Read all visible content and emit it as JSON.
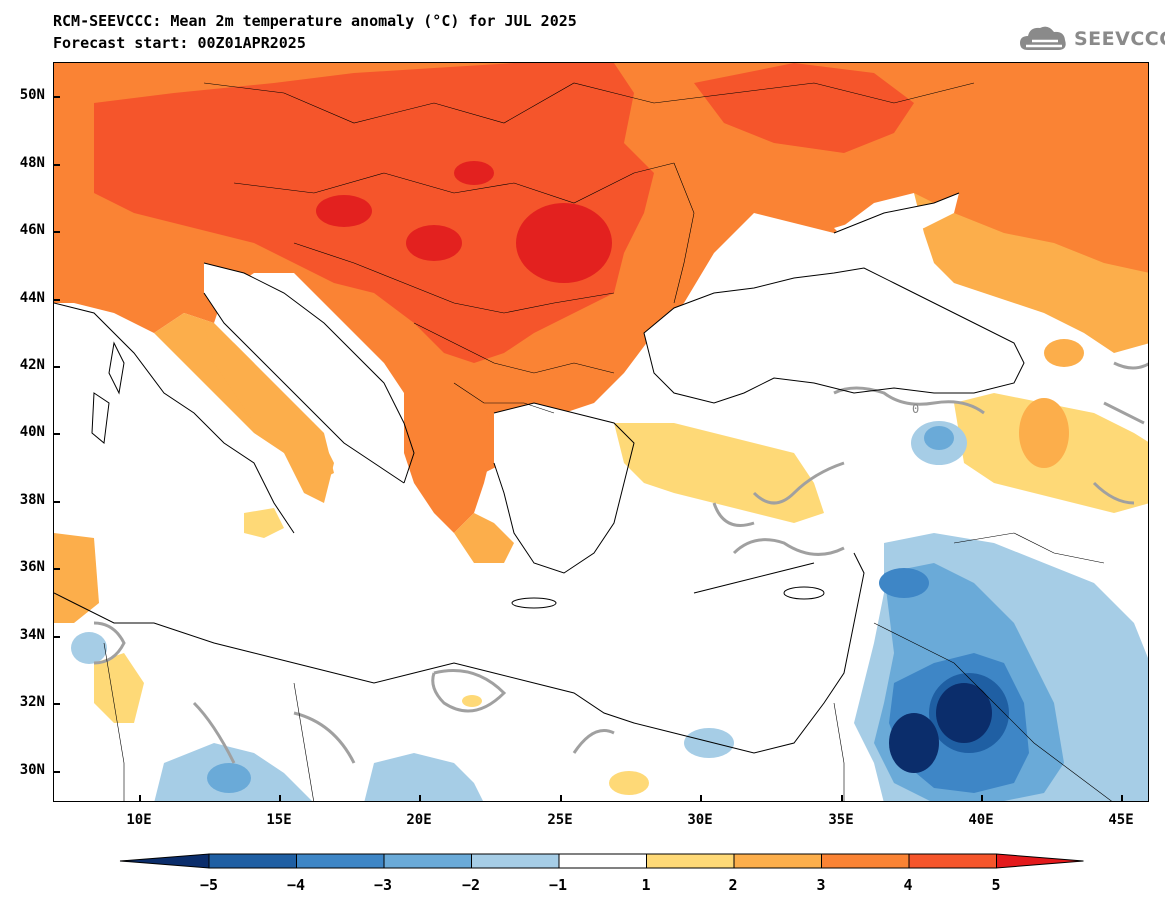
{
  "header": {
    "title": "RCM-SEEVCCC: Mean 2m temperature anomaly (°C) for JUL 2025",
    "subtitle": "Forecast start: 00Z01APR2025",
    "logo_text": "SEEVCCC"
  },
  "axes": {
    "lat_labels": [
      "50N",
      "48N",
      "46N",
      "44N",
      "42N",
      "40N",
      "38N",
      "36N",
      "34N",
      "32N",
      "30N"
    ],
    "lon_labels": [
      "10E",
      "15E",
      "20E",
      "25E",
      "30E",
      "35E",
      "40E",
      "45E"
    ],
    "contour_label": "0"
  },
  "colorbar": {
    "labels": [
      "−5",
      "−4",
      "−3",
      "−2",
      "−1",
      "1",
      "2",
      "3",
      "4",
      "5"
    ],
    "colors": [
      "#0b2d6b",
      "#1f5fa3",
      "#3e86c6",
      "#6aaad8",
      "#a6cde6",
      "#ffffff",
      "#fed977",
      "#fcae4b",
      "#fa8334",
      "#f5552b",
      "#e31a1c"
    ]
  },
  "palette": {
    "very_warm": "#e3211f",
    "warm5": "#f5552b",
    "warm4": "#fa8334",
    "warm3": "#fcae4b",
    "warm2": "#fed977",
    "cool2": "#a6cde6",
    "cool3": "#6aaad8",
    "cool4": "#3e86c6",
    "cool5": "#1f5fa3",
    "very_cool": "#0b2d6b"
  }
}
